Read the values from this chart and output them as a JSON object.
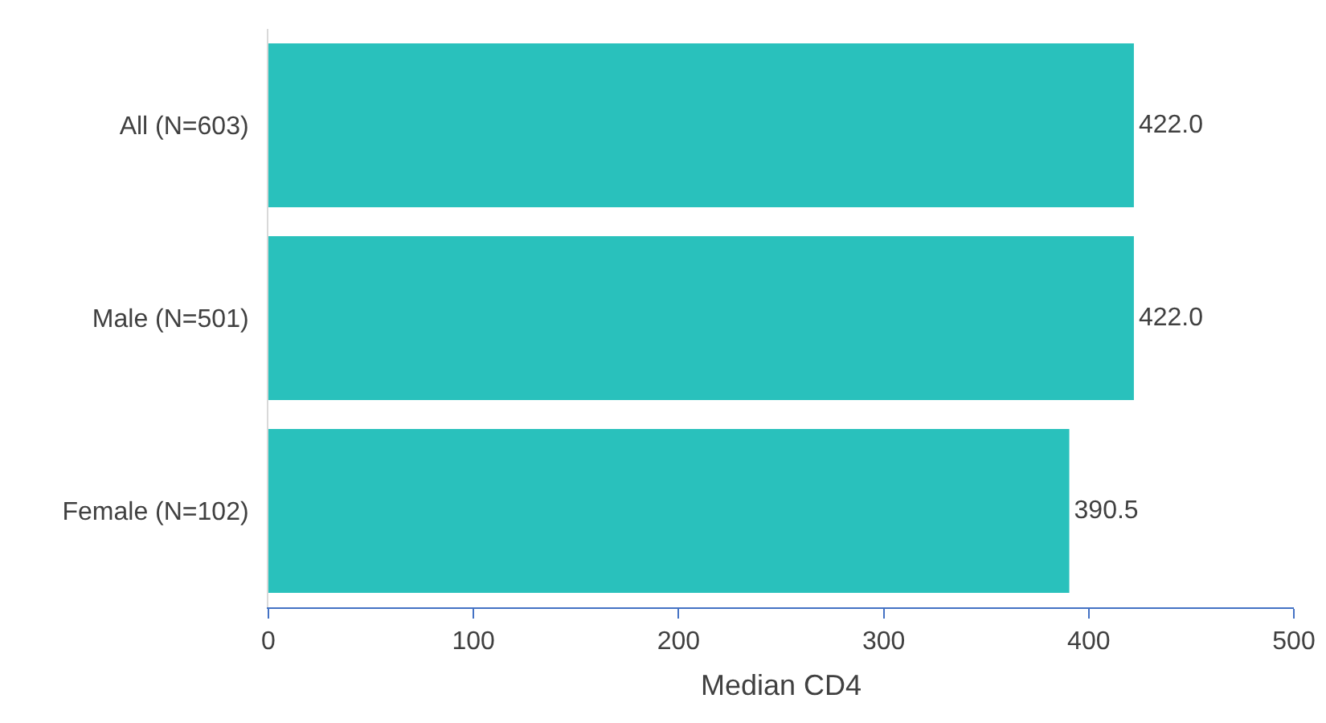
{
  "chart_data": {
    "type": "bar",
    "orientation": "horizontal",
    "categories": [
      "All (N=603)",
      "Male (N=501)",
      "Female (N=102)"
    ],
    "values": [
      422.0,
      422.0,
      390.5
    ],
    "value_labels": [
      "422.0",
      "422.0",
      "390.5"
    ],
    "color": "#29c1bc",
    "xlabel": "Median CD4",
    "xlim": [
      0,
      500
    ],
    "xticks": [
      0,
      100,
      200,
      300,
      400,
      500
    ],
    "grid": false,
    "legend": false
  }
}
